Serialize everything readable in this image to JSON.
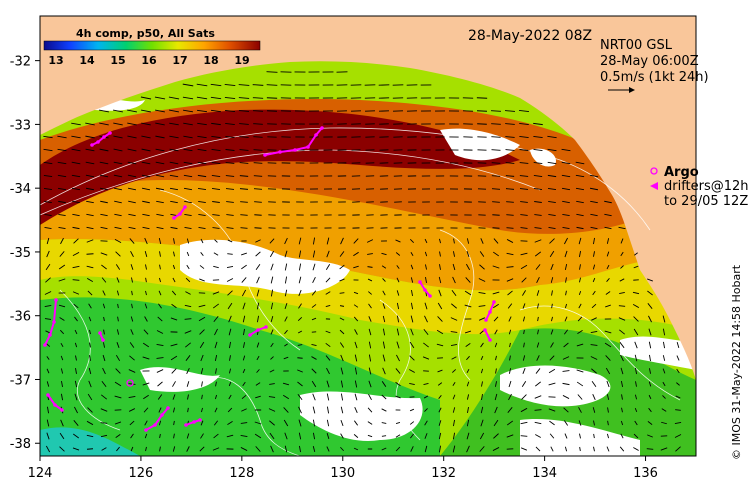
{
  "map": {
    "title_date": "28-May-2022 08Z",
    "product_title": "4h comp, p50, All Sats",
    "colorbar": {
      "ticks": [
        "13",
        "14",
        "15",
        "16",
        "17",
        "18",
        "19"
      ]
    },
    "current_info": {
      "line1": "NRT00 GSL",
      "line2": "28-May 06:00Z",
      "line3": "0.5m/s (1kt 24h)"
    },
    "legend": {
      "argo_label": "Argo",
      "drifters_line1": "drifters@12h",
      "drifters_line2": "to 29/05 12Z"
    },
    "credit": "© IMOS 31-May-2022 14:58 Hobart",
    "x_ticks": [
      "124",
      "126",
      "128",
      "130",
      "132",
      "134",
      "136"
    ],
    "y_ticks": [
      "-32",
      "-33",
      "-34",
      "-35",
      "-36",
      "-37",
      "-38"
    ],
    "colors": {
      "land": "#f9c69a",
      "argo": "#ff00ff",
      "sst_warm": "#8b0000",
      "sst_cool": "#00c000"
    }
  }
}
